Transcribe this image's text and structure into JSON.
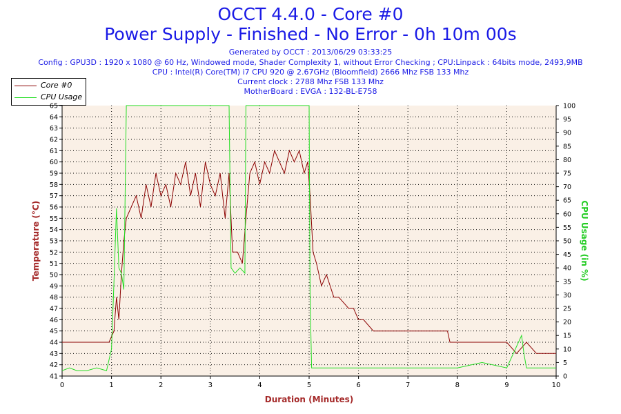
{
  "header": {
    "title_line1": "OCCT 4.4.0 - Core #0",
    "title_line2": "Power Supply - Finished - No Error - 0h 10m 00s",
    "generated": "Generated by OCCT : 2013/06/29 03:33:25",
    "config": "Config : GPU3D : 1920 x 1080 @ 60 Hz, Windowed mode, Shader Complexity 1, without Error Checking ; CPU:Linpack : 64bits mode, 2493,9MB",
    "cpu": "CPU : Intel(R) Core(TM) i7 CPU 920 @ 2.67GHz (Bloomfield) 2666 Mhz FSB 133 Mhz",
    "clock": "Current clock : 2788 Mhz FSB 133 Mhz",
    "motherboard": "MotherBoard : EVGA : 132-BL-E758"
  },
  "legend": {
    "core_label": "Core #0",
    "cpu_label": "CPU Usage"
  },
  "colors": {
    "temperature": "#8b0000",
    "cpu": "#22dd22",
    "plot_bg": "#faf0e6",
    "axis_title": "#a52a2a",
    "cpu_axis_title": "#22cc22"
  },
  "chart_data": {
    "type": "line",
    "xlabel": "Duration (Minutes)",
    "ylabel_left": "Temperature (°C)",
    "ylabel_right": "CPU Usage (in %)",
    "xlim": [
      0,
      10
    ],
    "ylim_left": [
      41,
      65
    ],
    "ylim_right": [
      0,
      100
    ],
    "x_ticks": [
      "0",
      "1",
      "2",
      "3",
      "4",
      "5",
      "6",
      "7",
      "8",
      "9",
      "10"
    ],
    "y_left_ticks": [
      "41",
      "42",
      "43",
      "44",
      "45",
      "46",
      "47",
      "48",
      "49",
      "50",
      "51",
      "52",
      "53",
      "54",
      "55",
      "56",
      "57",
      "58",
      "59",
      "60",
      "61",
      "62",
      "63",
      "64",
      "65"
    ],
    "y_right_ticks": [
      "0",
      "5",
      "10",
      "15",
      "20",
      "25",
      "30",
      "35",
      "40",
      "45",
      "50",
      "55",
      "60",
      "65",
      "70",
      "75",
      "80",
      "85",
      "90",
      "95",
      "100"
    ],
    "grid": true,
    "series": [
      {
        "name": "Core #0",
        "axis": "left",
        "x": [
          0,
          0.2,
          0.4,
          0.6,
          0.8,
          0.95,
          1.05,
          1.1,
          1.15,
          1.2,
          1.25,
          1.3,
          1.4,
          1.5,
          1.6,
          1.7,
          1.8,
          1.9,
          2.0,
          2.1,
          2.2,
          2.3,
          2.4,
          2.5,
          2.6,
          2.7,
          2.8,
          2.9,
          3.0,
          3.1,
          3.2,
          3.3,
          3.38,
          3.45,
          3.55,
          3.65,
          3.72,
          3.8,
          3.9,
          4.0,
          4.1,
          4.2,
          4.3,
          4.4,
          4.5,
          4.6,
          4.7,
          4.8,
          4.9,
          4.97,
          5.02,
          5.08,
          5.15,
          5.25,
          5.35,
          5.5,
          5.6,
          5.8,
          5.9,
          6.0,
          6.1,
          6.3,
          6.5,
          6.7,
          6.9,
          7.0,
          7.3,
          7.6,
          7.8,
          7.85,
          8.0,
          8.3,
          8.5,
          8.7,
          8.9,
          9.0,
          9.2,
          9.4,
          9.6,
          9.8,
          10.0
        ],
        "y": [
          44,
          44,
          44,
          44,
          44,
          44,
          45,
          48,
          46,
          50,
          53,
          55,
          56,
          57,
          55,
          58,
          56,
          59,
          57,
          58,
          56,
          59,
          58,
          60,
          57,
          59,
          56,
          60,
          58,
          57,
          59,
          55,
          59,
          52,
          52,
          51,
          55,
          59,
          60,
          58,
          60,
          59,
          61,
          60,
          59,
          61,
          60,
          61,
          59,
          60,
          57,
          52,
          51,
          49,
          50,
          48,
          48,
          47,
          47,
          46,
          46,
          45,
          45,
          45,
          45,
          45,
          45,
          45,
          45,
          44,
          44,
          44,
          44,
          44,
          44,
          44,
          43,
          44,
          43,
          43,
          43
        ]
      },
      {
        "name": "CPU Usage",
        "axis": "right",
        "x": [
          0,
          0.15,
          0.3,
          0.5,
          0.7,
          0.9,
          1.0,
          1.05,
          1.1,
          1.15,
          1.2,
          1.25,
          1.3,
          2.0,
          3.0,
          3.38,
          3.42,
          3.5,
          3.6,
          3.7,
          3.72,
          4.0,
          4.5,
          5.0,
          5.02,
          5.05,
          5.5,
          6.0,
          7.0,
          8.0,
          8.5,
          9.0,
          9.3,
          9.35,
          9.4,
          9.5,
          10.0
        ],
        "y": [
          2,
          3,
          2,
          2,
          3,
          2,
          10,
          35,
          62,
          40,
          38,
          32,
          100,
          100,
          100,
          100,
          40,
          38,
          40,
          38,
          100,
          100,
          100,
          100,
          30,
          3,
          3,
          3,
          3,
          3,
          5,
          3,
          15,
          8,
          3,
          3,
          3
        ]
      }
    ]
  }
}
